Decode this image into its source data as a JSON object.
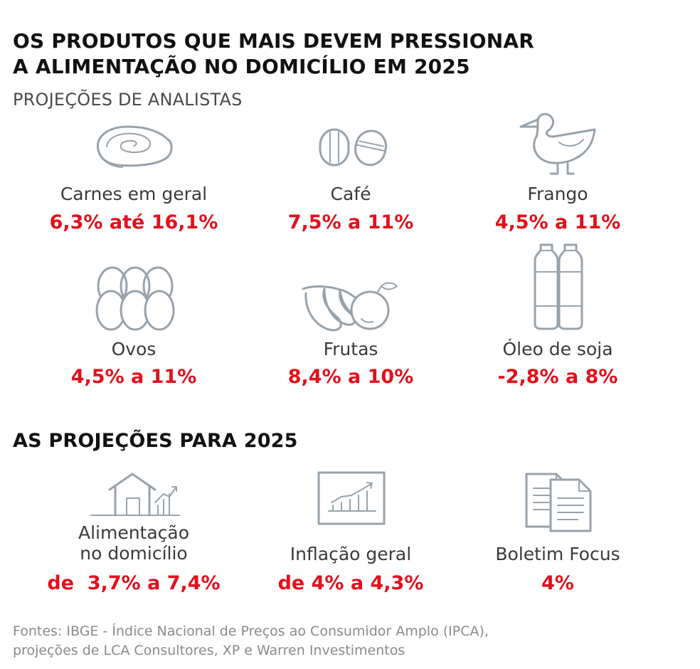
{
  "title": {
    "line1": "OS PRODUTOS QUE MAIS DEVEM PRESSIONAR",
    "line2": "A ALIMENTAÇÃO NO DOMICÍLIO EM 2025"
  },
  "subtitle": "PROJEÇÕES DE ANALISTAS",
  "products": [
    {
      "label": "Carnes em geral",
      "value": "6,3% até 16,1%",
      "icon": "meat-icon"
    },
    {
      "label": "Café",
      "value": "7,5% a 11%",
      "icon": "coffee-beans-icon"
    },
    {
      "label": "Frango",
      "value": "4,5% a 11%",
      "icon": "chicken-icon"
    },
    {
      "label": "Ovos",
      "value": "4,5% a 11%",
      "icon": "eggs-icon"
    },
    {
      "label": "Frutas",
      "value": "8,4% a 10%",
      "icon": "fruits-icon"
    },
    {
      "label": "Óleo de soja",
      "value": "-2,8% a 8%",
      "icon": "oil-bottles-icon"
    }
  ],
  "section2_title": "AS PROJEÇÕES PARA 2025",
  "projections": [
    {
      "label_line1": "Alimentação",
      "label_line2": "no domicílio",
      "value": "de  3,7% a 7,4%",
      "icon": "house-chart-icon"
    },
    {
      "label": "Inflação geral",
      "value": "de 4% a 4,3%",
      "icon": "growth-chart-icon"
    },
    {
      "label": "Boletim Focus",
      "value": "4%",
      "icon": "documents-icon"
    }
  ],
  "source": {
    "line1": "Fontes: IBGE - Índice Nacional de Preços ao Consumidor Amplo (IPCA),",
    "line2": "projeções de LCA Consultores, XP e Warren Investimentos"
  },
  "colors": {
    "accent": "#e3101b",
    "icon": "#98a2ab",
    "heading": "#111111",
    "source": "#8a8a8a"
  }
}
